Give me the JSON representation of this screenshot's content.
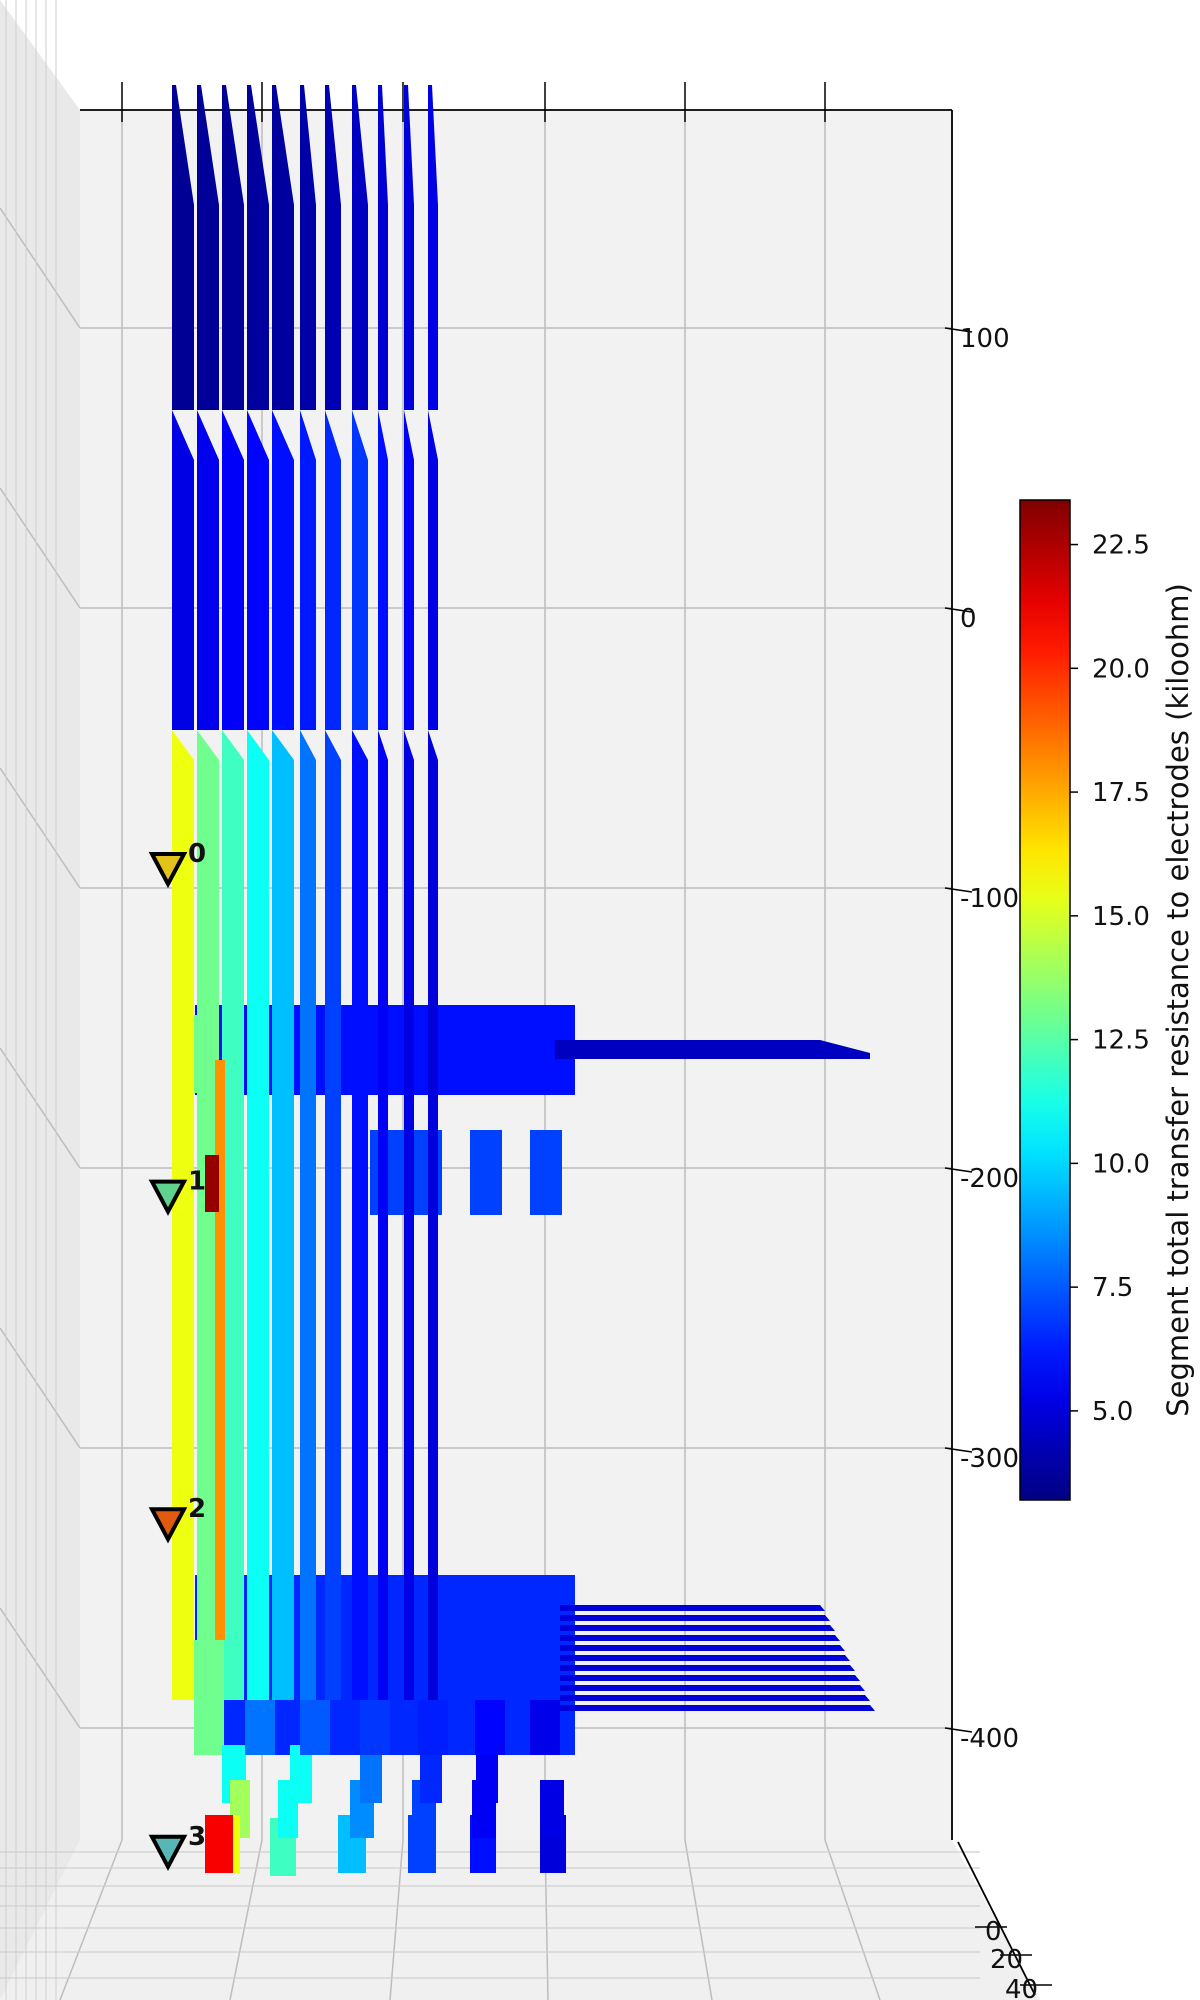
{
  "chart_data": {
    "type": "3d-bar",
    "title": "",
    "colorbar": {
      "label": "Segment total transfer resistance to electrodes (kiloohm)",
      "min": 3.2,
      "max": 23.4,
      "ticks": [
        "5.0",
        "7.5",
        "10.0",
        "12.5",
        "15.0",
        "17.5",
        "20.0",
        "22.5"
      ],
      "tick_values": [
        5.0,
        7.5,
        10.0,
        12.5,
        15.0,
        17.5,
        20.0,
        22.5
      ],
      "colormap": "jet"
    },
    "z_axis": {
      "tick_labels": [
        "100",
        "0",
        "-100",
        "-200",
        "-300",
        "-400"
      ],
      "tick_values": [
        100,
        0,
        -100,
        -200,
        -300,
        -400
      ],
      "range": [
        -440,
        190
      ]
    },
    "depth_axis": {
      "tick_labels": [
        "0",
        "20",
        "40"
      ],
      "tick_values": [
        0,
        20,
        40
      ]
    },
    "electrodes": [
      {
        "label": "0",
        "z": -95,
        "value": 16.5,
        "color": "#e3c21a"
      },
      {
        "label": "1",
        "z": -212,
        "value": 12.0,
        "color": "#5fd28f"
      },
      {
        "label": "2",
        "z": -329,
        "value": 19.5,
        "color": "#e05a10"
      },
      {
        "label": "3",
        "z": -446,
        "value": 10.5,
        "color": "#58b7b4"
      }
    ],
    "dendrites": [
      {
        "name": "d1",
        "top": 172,
        "top_value": 3.6,
        "mid_value": 5.2,
        "low_value": 15.5
      },
      {
        "name": "d2",
        "top": 197,
        "top_value": 3.7,
        "mid_value": 5.4,
        "low_value": 13.0
      },
      {
        "name": "d3",
        "top": 222,
        "top_value": 3.7,
        "mid_value": 5.6,
        "low_value": 12.0
      },
      {
        "name": "d4",
        "top": 247,
        "top_value": 3.8,
        "mid_value": 5.8,
        "low_value": 11.0
      },
      {
        "name": "d5",
        "top": 272,
        "top_value": 3.8,
        "mid_value": 6.0,
        "low_value": 9.5
      },
      {
        "name": "d6",
        "top": 300,
        "top_value": 4.0,
        "mid_value": 6.2,
        "low_value": 8.0
      },
      {
        "name": "d7",
        "top": 325,
        "top_value": 4.2,
        "mid_value": 6.5,
        "low_value": 7.0
      },
      {
        "name": "d8",
        "top": 352,
        "top_value": 4.5,
        "mid_value": 6.8,
        "low_value": 6.0
      },
      {
        "name": "d9",
        "top": 378,
        "top_value": 4.8,
        "mid_value": 6.0,
        "low_value": 5.5
      },
      {
        "name": "d10",
        "top": 404,
        "top_value": 5.0,
        "mid_value": 5.5,
        "low_value": 5.2
      },
      {
        "name": "d11",
        "top": 428,
        "top_value": 5.2,
        "mid_value": 5.2,
        "low_value": 5.0
      }
    ],
    "axon_branches": [
      {
        "name": "upper-branch",
        "value": 4.5
      },
      {
        "name": "lower-branches",
        "value": 5.0
      }
    ]
  }
}
